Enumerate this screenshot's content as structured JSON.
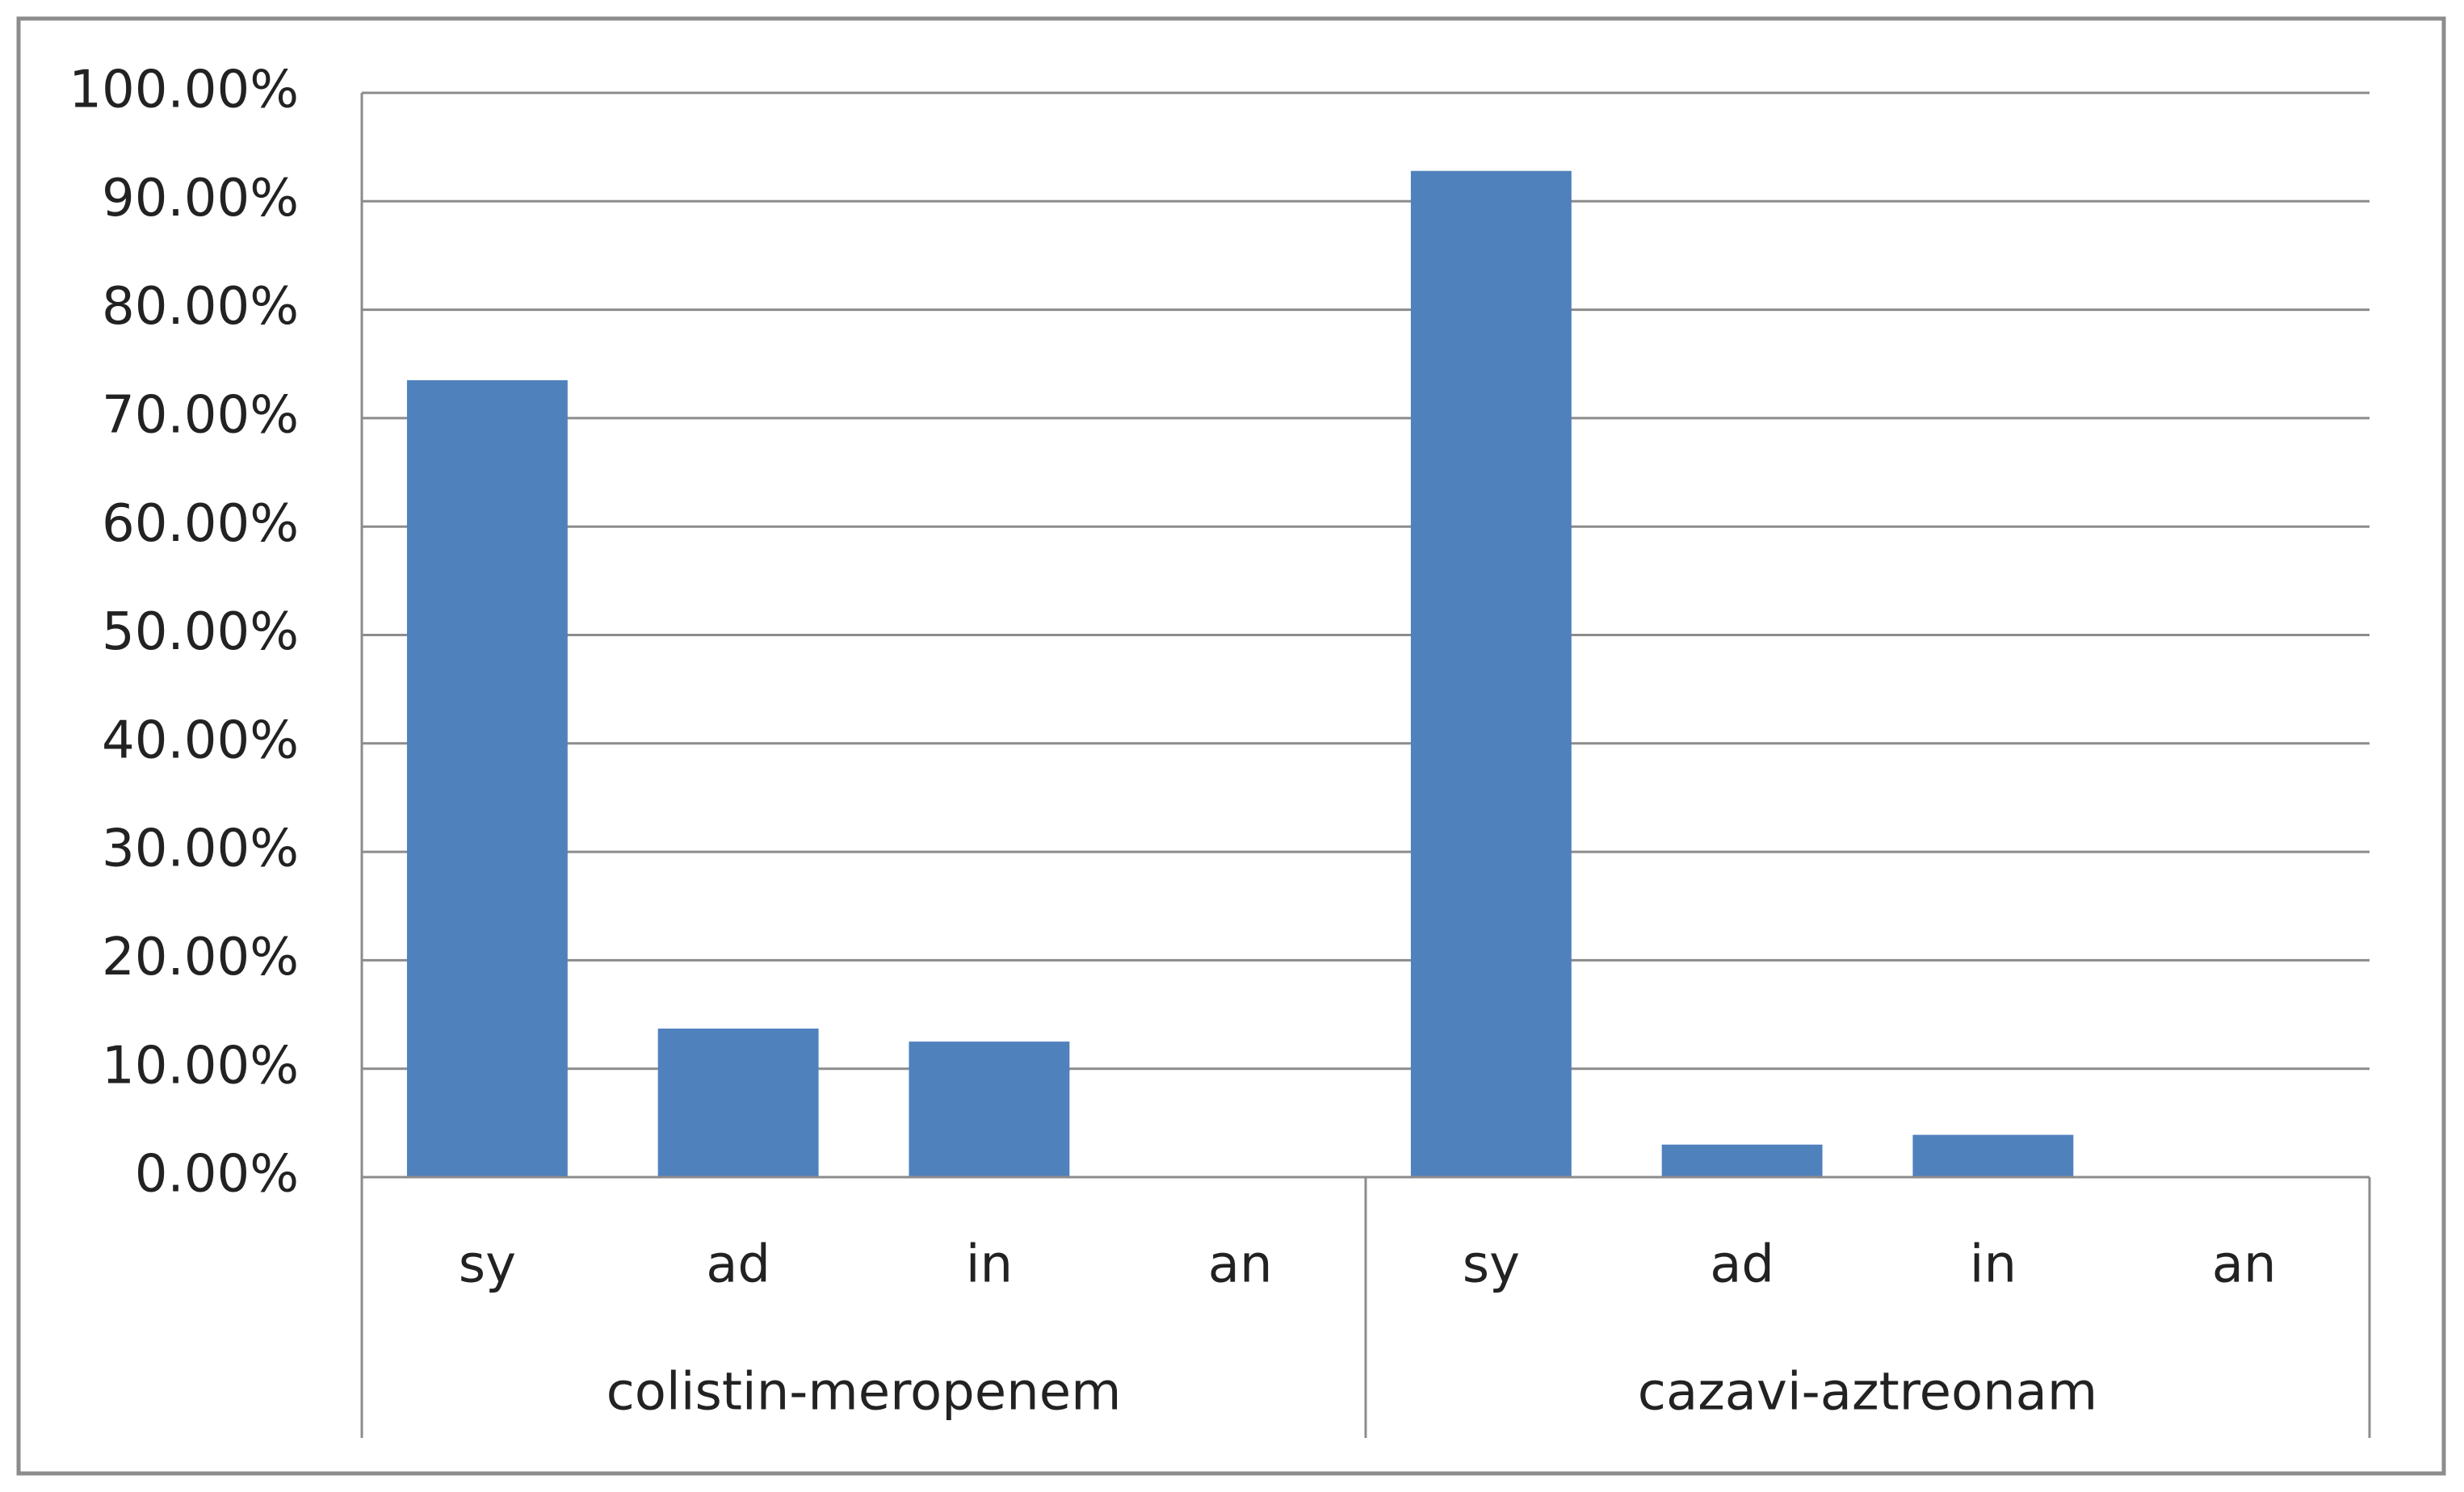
{
  "chart_data": {
    "type": "bar",
    "categories": [
      "sy",
      "ad",
      "in",
      "an",
      "sy",
      "ad",
      "in",
      "an"
    ],
    "groups": [
      "colistin-meropenem",
      "cazavi-aztreonam"
    ],
    "values": [
      73.5,
      13.7,
      12.5,
      0,
      92.8,
      3.0,
      3.9,
      0
    ],
    "color": "#4f81bd",
    "ylim": [
      0,
      100
    ],
    "yticks": [
      {
        "value": 0,
        "label": "0.00%"
      },
      {
        "value": 10,
        "label": "10.00%"
      },
      {
        "value": 20,
        "label": "20.00%"
      },
      {
        "value": 30,
        "label": "30.00%"
      },
      {
        "value": 40,
        "label": "40.00%"
      },
      {
        "value": 50,
        "label": "50.00%"
      },
      {
        "value": 60,
        "label": "60.00%"
      },
      {
        "value": 70,
        "label": "70.00%"
      },
      {
        "value": 80,
        "label": "80.00%"
      },
      {
        "value": 90,
        "label": "90.00%"
      },
      {
        "value": 100,
        "label": "100.00%"
      }
    ],
    "grid": true
  }
}
